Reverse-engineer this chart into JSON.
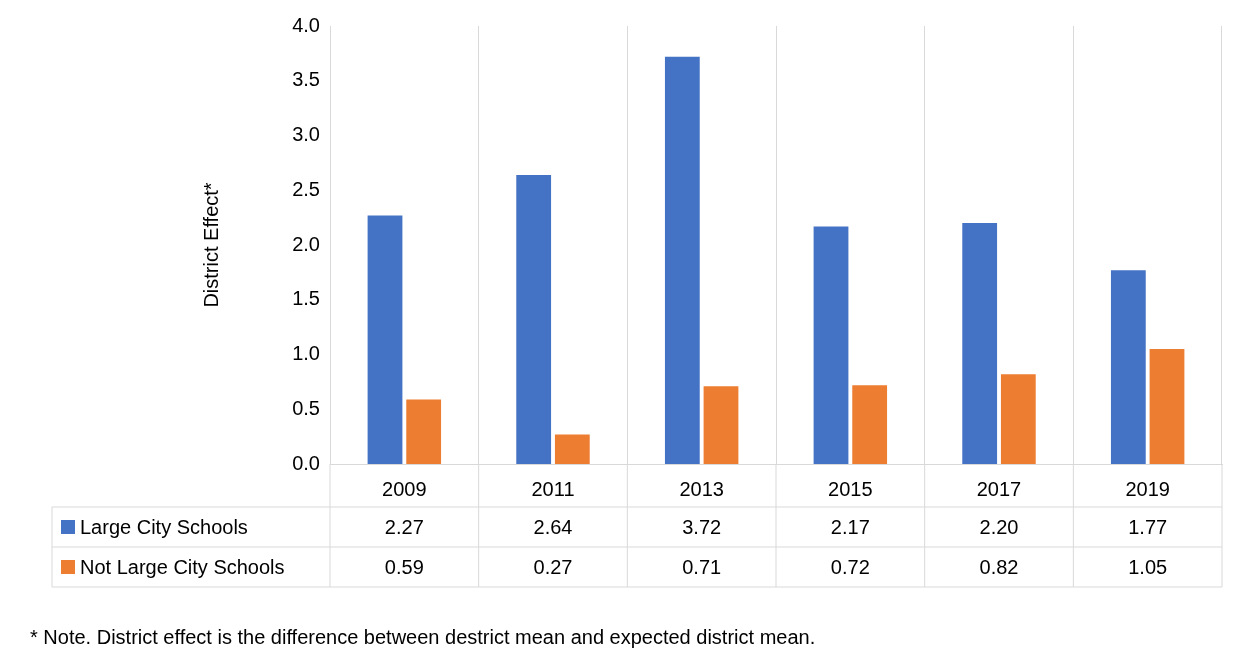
{
  "chart_data": {
    "type": "bar",
    "ylabel": "District Effect*",
    "categories": [
      "2009",
      "2011",
      "2013",
      "2015",
      "2017",
      "2019"
    ],
    "series": [
      {
        "name": "Large City Schools",
        "color": "#4472c4",
        "values": [
          2.27,
          2.64,
          3.72,
          2.17,
          2.2,
          1.77
        ],
        "value_labels": [
          "2.27",
          "2.64",
          "3.72",
          "2.17",
          "2.20",
          "1.77"
        ]
      },
      {
        "name": "Not Large City Schools",
        "color": "#ed7d31",
        "values": [
          0.59,
          0.27,
          0.71,
          0.72,
          0.82,
          1.05
        ],
        "value_labels": [
          "0.59",
          "0.27",
          "0.71",
          "0.72",
          "0.82",
          "1.05"
        ]
      }
    ],
    "ylim": [
      0,
      4
    ],
    "yticks": [
      {
        "value": 0,
        "label": "0.0"
      },
      {
        "value": 0.5,
        "label": "0.5"
      },
      {
        "value": 1,
        "label": "1.0"
      },
      {
        "value": 1.5,
        "label": "1.5"
      },
      {
        "value": 2,
        "label": "2.0"
      },
      {
        "value": 2.5,
        "label": "2.5"
      },
      {
        "value": 3,
        "label": "3.0"
      },
      {
        "value": 3.5,
        "label": "3.5"
      },
      {
        "value": 4,
        "label": "4.0"
      }
    ],
    "grid": "x",
    "legend": "bottom",
    "annotations": [
      "* Note. District effect is the difference between destrict mean and expected district mean."
    ]
  }
}
